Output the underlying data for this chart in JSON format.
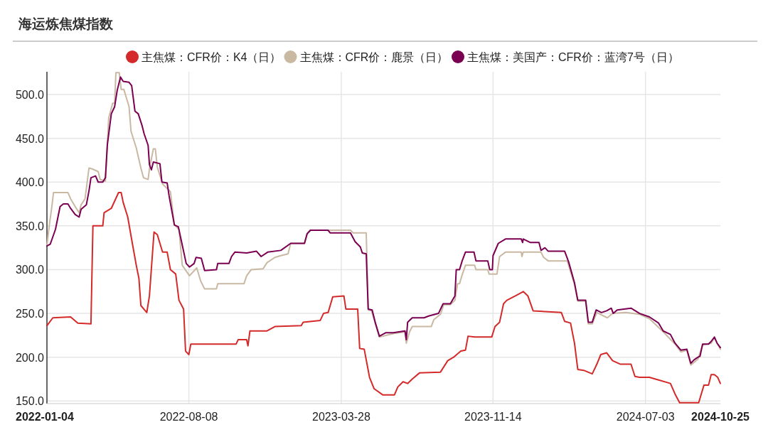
{
  "chart_data": {
    "type": "line",
    "title": "海运炼焦煤指数",
    "xlim": [
      "2022-01-04",
      "2024-10-25"
    ],
    "xticks": [
      "2022-01-04",
      "2022-08-08",
      "2023-03-28",
      "2023-11-14",
      "2024-07-03",
      "2024-10-25"
    ],
    "ylim": [
      147,
      526
    ],
    "yticks": [
      {
        "value": 150,
        "label": "150.0"
      },
      {
        "value": 200,
        "label": "200.0"
      },
      {
        "value": 250,
        "label": "250.0"
      },
      {
        "value": 300,
        "label": "300.0"
      },
      {
        "value": 350,
        "label": "350.0"
      },
      {
        "value": 400,
        "label": "400.0"
      },
      {
        "value": 450,
        "label": "450.0"
      },
      {
        "value": 500,
        "label": "500.0"
      }
    ],
    "grid": true,
    "legend": "top",
    "marker": "none",
    "line_style": "solid",
    "series": [
      {
        "name": "主焦煤：CFR价：K4（日）",
        "color": "#d42a2a",
        "x": [
          "2022-01-04",
          "2022-01-13",
          "2022-02-09",
          "2022-02-20",
          "2022-03-12",
          "2022-03-15",
          "2022-03-30",
          "2022-04-01",
          "2022-04-12",
          "2022-04-23",
          "2022-04-27",
          "2022-04-30",
          "2022-05-07",
          "2022-05-14",
          "2022-05-20",
          "2022-05-24",
          "2022-05-27",
          "2022-06-05",
          "2022-06-09",
          "2022-06-16",
          "2022-06-21",
          "2022-06-29",
          "2022-07-06",
          "2022-07-11",
          "2022-07-19",
          "2022-07-24",
          "2022-07-31",
          "2022-08-03",
          "2022-08-08",
          "2022-08-11",
          "2022-10-19",
          "2022-10-22",
          "2022-11-04",
          "2022-11-06",
          "2022-11-09",
          "2022-12-05",
          "2022-12-17",
          "2023-01-26",
          "2023-01-29",
          "2023-02-24",
          "2023-03-01",
          "2023-03-08",
          "2023-03-15",
          "2023-04-01",
          "2023-04-04",
          "2023-04-22",
          "2023-04-25",
          "2023-05-02",
          "2023-05-10",
          "2023-05-17",
          "2023-05-30",
          "2023-06-17",
          "2023-06-22",
          "2023-06-30",
          "2023-07-07",
          "2023-07-14",
          "2023-07-25",
          "2023-08-26",
          "2023-09-06",
          "2023-09-15",
          "2023-09-26",
          "2023-10-03",
          "2023-10-07",
          "2023-10-17",
          "2023-11-12",
          "2023-11-17",
          "2023-11-24",
          "2023-11-30",
          "2023-12-05",
          "2023-12-18",
          "2023-12-30",
          "2024-01-06",
          "2024-01-14",
          "2024-02-26",
          "2024-03-02",
          "2024-03-11",
          "2024-03-17",
          "2024-03-22",
          "2024-03-31",
          "2024-04-13",
          "2024-04-20",
          "2024-04-26",
          "2024-05-05",
          "2024-05-14",
          "2024-05-26",
          "2024-06-11",
          "2024-06-17",
          "2024-06-24",
          "2024-07-09",
          "2024-07-23",
          "2024-08-10",
          "2024-08-17",
          "2024-08-24",
          "2024-09-22",
          "2024-09-30",
          "2024-10-07",
          "2024-10-11",
          "2024-10-16",
          "2024-10-21",
          "2024-10-25"
        ],
        "values": [
          236,
          245,
          246,
          239,
          238,
          350,
          350,
          365,
          370,
          388,
          388,
          377,
          360,
          330,
          305,
          290,
          259,
          251,
          270,
          343,
          340,
          320,
          320,
          300,
          295,
          265,
          255,
          207,
          203,
          215,
          215,
          220,
          220,
          213,
          230,
          230,
          235,
          236,
          240,
          242,
          250,
          251,
          269,
          270,
          255,
          255,
          210,
          209,
          177,
          164,
          157,
          157,
          166,
          172,
          170,
          175,
          182,
          183,
          196,
          200,
          207,
          208,
          224,
          223,
          223,
          235,
          240,
          261,
          265,
          270,
          275,
          270,
          253,
          251,
          241,
          239,
          216,
          186,
          185,
          181,
          192,
          203,
          205,
          196,
          192,
          192,
          178,
          177,
          177,
          174,
          170,
          158,
          148,
          148,
          168,
          168,
          180,
          180,
          177,
          170
        ]
      },
      {
        "name": "主焦煤：CFR价：鹿景（日）",
        "color": "#c9b9a3",
        "x": [
          "2022-01-04",
          "2022-01-08",
          "2022-01-11",
          "2022-01-14",
          "2022-02-05",
          "2022-02-09",
          "2022-02-16",
          "2022-02-22",
          "2022-02-25",
          "2022-03-03",
          "2022-03-09",
          "2022-03-14",
          "2022-03-23",
          "2022-03-26",
          "2022-04-03",
          "2022-04-08",
          "2022-04-14",
          "2022-04-17",
          "2022-04-19",
          "2022-04-24",
          "2022-04-27",
          "2022-05-01",
          "2022-05-09",
          "2022-05-12",
          "2022-05-20",
          "2022-05-27",
          "2022-05-31",
          "2022-06-07",
          "2022-06-09",
          "2022-06-15",
          "2022-06-18",
          "2022-06-21",
          "2022-06-29",
          "2022-07-04",
          "2022-07-11",
          "2022-07-17",
          "2022-07-24",
          "2022-07-29",
          "2022-08-09",
          "2022-08-20",
          "2022-08-26",
          "2022-09-01",
          "2022-09-19",
          "2022-09-21",
          "2022-10-31",
          "2022-11-04",
          "2022-11-11",
          "2022-11-29",
          "2022-12-05",
          "2022-12-17",
          "2022-12-26",
          "2023-01-06",
          "2023-01-10",
          "2023-01-31",
          "2023-02-04",
          "2023-02-09",
          "2023-04-11",
          "2023-04-15",
          "2023-05-05",
          "2023-05-08",
          "2023-05-13",
          "2023-05-19",
          "2023-05-25",
          "2023-06-15",
          "2023-07-03",
          "2023-07-05",
          "2023-07-10",
          "2023-07-14",
          "2023-08-12",
          "2023-08-16",
          "2023-08-26",
          "2023-08-31",
          "2023-09-10",
          "2023-09-17",
          "2023-09-21",
          "2023-09-24",
          "2023-09-28",
          "2023-10-03",
          "2023-10-17",
          "2023-10-19",
          "2023-11-06",
          "2023-11-08",
          "2023-11-20",
          "2023-11-24",
          "2023-12-03",
          "2023-12-27",
          "2023-12-28",
          "2023-12-30",
          "2024-01-26",
          "2024-01-30",
          "2024-02-06",
          "2024-03-06",
          "2024-03-17",
          "2024-03-22",
          "2024-04-03",
          "2024-04-07",
          "2024-04-13",
          "2024-04-20",
          "2024-05-06",
          "2024-05-14",
          "2024-06-03",
          "2024-06-24",
          "2024-07-09",
          "2024-07-30",
          "2024-08-17",
          "2024-08-26",
          "2024-09-04",
          "2024-09-10",
          "2024-09-21",
          "2024-09-28",
          "2024-10-11",
          "2024-10-16",
          "2024-10-25"
        ],
        "values": [
          328,
          353,
          369,
          388,
          388,
          381,
          372,
          365,
          374,
          381,
          416,
          415,
          412,
          403,
          401,
          473,
          490,
          490,
          525,
          525,
          506,
          506,
          486,
          458,
          439,
          416,
          405,
          403,
          415,
          438,
          438,
          417,
          398,
          394,
          389,
          351,
          346,
          305,
          293,
          302,
          287,
          278,
          278,
          284,
          284,
          293,
          300,
          301,
          308,
          314,
          316,
          318,
          330,
          330,
          341,
          345,
          345,
          342,
          342,
          254,
          253,
          238,
          223,
          227,
          229,
          216,
          229,
          235,
          235,
          243,
          249,
          260,
          260,
          265,
          284,
          284,
          294,
          305,
          305,
          300,
          300,
          295,
          295,
          315,
          320,
          320,
          315,
          320,
          320,
          314,
          310,
          310,
          283,
          264,
          264,
          238,
          238,
          251,
          245,
          250,
          251,
          249,
          244,
          229,
          215,
          206,
          208,
          191,
          198,
          214,
          216,
          222,
          209
        ]
      },
      {
        "name": "主焦煤：美国产：CFR价：蓝湾7号（日）",
        "color": "#7b0052",
        "x": [
          "2022-01-04",
          "2022-01-09",
          "2022-01-17",
          "2022-01-24",
          "2022-01-29",
          "2022-02-05",
          "2022-02-09",
          "2022-02-16",
          "2022-02-22",
          "2022-02-25",
          "2022-03-05",
          "2022-03-09",
          "2022-03-12",
          "2022-03-19",
          "2022-03-23",
          "2022-03-30",
          "2022-04-03",
          "2022-04-06",
          "2022-04-12",
          "2022-04-17",
          "2022-04-21",
          "2022-04-26",
          "2022-04-30",
          "2022-05-09",
          "2022-05-13",
          "2022-05-18",
          "2022-05-23",
          "2022-05-29",
          "2022-06-01",
          "2022-06-07",
          "2022-06-09",
          "2022-06-12",
          "2022-06-15",
          "2022-06-25",
          "2022-06-28",
          "2022-07-06",
          "2022-07-09",
          "2022-07-17",
          "2022-07-23",
          "2022-07-29",
          "2022-08-04",
          "2022-08-09",
          "2022-08-16",
          "2022-08-19",
          "2022-08-27",
          "2022-09-01",
          "2022-09-19",
          "2022-09-21",
          "2022-10-08",
          "2022-10-12",
          "2022-10-17",
          "2022-11-04",
          "2022-11-19",
          "2022-11-26",
          "2022-12-06",
          "2022-12-26",
          "2023-01-10",
          "2023-01-31",
          "2023-02-04",
          "2023-02-09",
          "2023-03-08",
          "2023-03-11",
          "2023-04-11",
          "2023-04-18",
          "2023-04-26",
          "2023-04-29",
          "2023-05-05",
          "2023-05-08",
          "2023-05-14",
          "2023-05-19",
          "2023-05-25",
          "2023-06-04",
          "2023-06-15",
          "2023-07-03",
          "2023-07-05",
          "2023-07-07",
          "2023-07-14",
          "2023-08-01",
          "2023-08-08",
          "2023-08-23",
          "2023-08-30",
          "2023-09-10",
          "2023-09-17",
          "2023-09-19",
          "2023-09-24",
          "2023-09-28",
          "2023-10-03",
          "2023-10-16",
          "2023-10-19",
          "2023-11-06",
          "2023-11-09",
          "2023-11-13",
          "2023-11-14",
          "2023-11-22",
          "2023-12-03",
          "2023-12-27",
          "2023-12-29",
          "2023-12-30",
          "2024-01-10",
          "2024-01-23",
          "2024-01-26",
          "2024-02-01",
          "2024-02-06",
          "2024-03-02",
          "2024-03-08",
          "2024-03-17",
          "2024-03-22",
          "2024-04-03",
          "2024-04-07",
          "2024-04-13",
          "2024-04-19",
          "2024-04-27",
          "2024-05-05",
          "2024-05-12",
          "2024-05-15",
          "2024-05-21",
          "2024-06-11",
          "2024-06-24",
          "2024-07-09",
          "2024-07-23",
          "2024-07-30",
          "2024-08-10",
          "2024-08-17",
          "2024-08-26",
          "2024-09-04",
          "2024-09-10",
          "2024-09-15",
          "2024-09-21",
          "2024-09-24",
          "2024-09-28",
          "2024-10-07",
          "2024-10-11",
          "2024-10-16",
          "2024-10-20",
          "2024-10-25"
        ],
        "values": [
          327,
          329,
          346,
          372,
          375,
          375,
          370,
          363,
          360,
          369,
          374,
          390,
          405,
          407,
          400,
          400,
          405,
          443,
          478,
          486,
          505,
          520,
          515,
          514,
          510,
          481,
          478,
          464,
          455,
          442,
          420,
          414,
          423,
          421,
          400,
          399,
          384,
          351,
          349,
          328,
          307,
          303,
          307,
          314,
          313,
          299,
          300,
          307,
          307,
          315,
          320,
          319,
          321,
          315,
          320,
          322,
          330,
          330,
          341,
          345,
          345,
          342,
          342,
          332,
          326,
          319,
          318,
          255,
          254,
          239,
          224,
          228,
          228,
          230,
          220,
          240,
          245,
          245,
          247,
          250,
          261,
          261,
          270,
          300,
          300,
          310,
          320,
          320,
          310,
          310,
          300,
          300,
          316,
          330,
          335,
          335,
          331,
          335,
          331,
          331,
          322,
          325,
          321,
          321,
          309,
          285,
          265,
          265,
          240,
          240,
          254,
          251,
          253,
          256,
          250,
          254,
          256,
          250,
          246,
          239,
          230,
          226,
          216,
          208,
          209,
          193,
          197,
          200,
          201,
          215,
          215,
          218,
          223,
          216,
          211
        ]
      }
    ]
  }
}
